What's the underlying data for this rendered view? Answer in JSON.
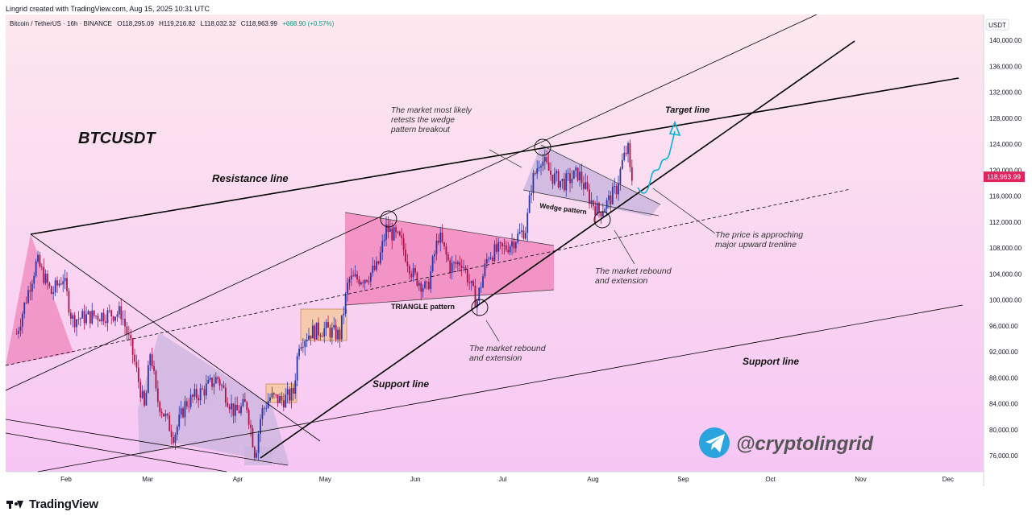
{
  "header": {
    "credit": "Lingrid created with TradingView.com, Aug 15, 2025 10:31 UTC"
  },
  "footer": {
    "brand": "TradingView"
  },
  "colors": {
    "bg_top": "#fde8ee",
    "bg_bottom": "#f7c6f4",
    "bull": "#2a36a8",
    "bear": "#b0124a",
    "price_badge": "#e0245e",
    "cyan_arrow": "#00b4d8",
    "telegram": "#2aa3de"
  },
  "chart_data": {
    "type": "candlestick",
    "symbol_line": "Bitcoin / TetherUS · 16h · BINANCE",
    "ohlc": {
      "o": "O118,295.09",
      "h": "H119,216.82",
      "l": "L118,032.32",
      "c": "C118,963.99",
      "chg": "+668.90 (+0.57%)"
    },
    "currency": "USDT",
    "last_price": 118963.99,
    "last_price_label": "118,963.99",
    "ylim": [
      72000,
      142000
    ],
    "y_ticks": [
      "140,000.00",
      "136,000.00",
      "132,000.00",
      "128,000.00",
      "124,000.00",
      "120,000.00",
      "116,000.00",
      "112,000.00",
      "108,000.00",
      "104,000.00",
      "100,000.00",
      "96,000.00",
      "92,000.00",
      "88,000.00",
      "84,000.00",
      "80,000.00",
      "76,000.00"
    ],
    "x_ticks": [
      "Feb",
      "Mar",
      "Apr",
      "May",
      "Jun",
      "Jul",
      "Aug",
      "Sep",
      "Oct",
      "Nov",
      "Dec"
    ],
    "price_path": [
      [
        "2025-01-15",
        94800
      ],
      [
        "2025-01-20",
        103000
      ],
      [
        "2025-01-22",
        106000
      ],
      [
        "2025-01-27",
        101000
      ],
      [
        "2025-01-31",
        103500
      ],
      [
        "2025-02-03",
        97000
      ],
      [
        "2025-02-10",
        97500
      ],
      [
        "2025-02-20",
        98000
      ],
      [
        "2025-02-24",
        91500
      ],
      [
        "2025-02-28",
        83000
      ],
      [
        "2025-03-02",
        92500
      ],
      [
        "2025-03-04",
        85000
      ],
      [
        "2025-03-10",
        79000
      ],
      [
        "2025-03-14",
        84000
      ],
      [
        "2025-03-20",
        86000
      ],
      [
        "2025-03-25",
        88000
      ],
      [
        "2025-03-31",
        82500
      ],
      [
        "2025-04-04",
        84000
      ],
      [
        "2025-04-07",
        76000
      ],
      [
        "2025-04-09",
        82500
      ],
      [
        "2025-04-12",
        85000
      ],
      [
        "2025-04-16",
        84500
      ],
      [
        "2025-04-20",
        85500
      ],
      [
        "2025-04-22",
        93500
      ],
      [
        "2025-04-26",
        95000
      ],
      [
        "2025-05-01",
        95500
      ],
      [
        "2025-05-06",
        94500
      ],
      [
        "2025-05-09",
        103000
      ],
      [
        "2025-05-15",
        103500
      ],
      [
        "2025-05-19",
        105000
      ],
      [
        "2025-05-22",
        111000
      ],
      [
        "2025-05-27",
        109000
      ],
      [
        "2025-05-31",
        104000
      ],
      [
        "2025-06-05",
        101500
      ],
      [
        "2025-06-09",
        110000
      ],
      [
        "2025-06-13",
        105000
      ],
      [
        "2025-06-17",
        106000
      ],
      [
        "2025-06-22",
        99500
      ],
      [
        "2025-06-26",
        107000
      ],
      [
        "2025-07-02",
        108000
      ],
      [
        "2025-07-09",
        111000
      ],
      [
        "2025-07-11",
        118000
      ],
      [
        "2025-07-14",
        122000
      ],
      [
        "2025-07-18",
        119000
      ],
      [
        "2025-07-22",
        118000
      ],
      [
        "2025-07-27",
        119500
      ],
      [
        "2025-07-31",
        115500
      ],
      [
        "2025-08-03",
        113500
      ],
      [
        "2025-08-06",
        115000
      ],
      [
        "2025-08-09",
        117000
      ],
      [
        "2025-08-11",
        121000
      ],
      [
        "2025-08-13",
        123500
      ],
      [
        "2025-08-14",
        118500
      ],
      [
        "2025-08-15",
        118964
      ]
    ]
  },
  "annotations": {
    "title": "BTCUSDT",
    "resistance": "Resistance line",
    "target": "Target line",
    "support_main": "Support line",
    "support_lower": "Support line",
    "wedge": "Wedge pattern",
    "triangle": "TRIANGLE pattern",
    "retest": [
      "The market most likely",
      "retests the wedge",
      "pattern breakout"
    ],
    "rebound_aug": [
      "The market rebound",
      "and extension"
    ],
    "rebound_jun": [
      "The market rebound",
      "and extension"
    ],
    "approach": [
      "The price is approching",
      "major upward trenline"
    ],
    "handle": "@cryptolingrid"
  }
}
